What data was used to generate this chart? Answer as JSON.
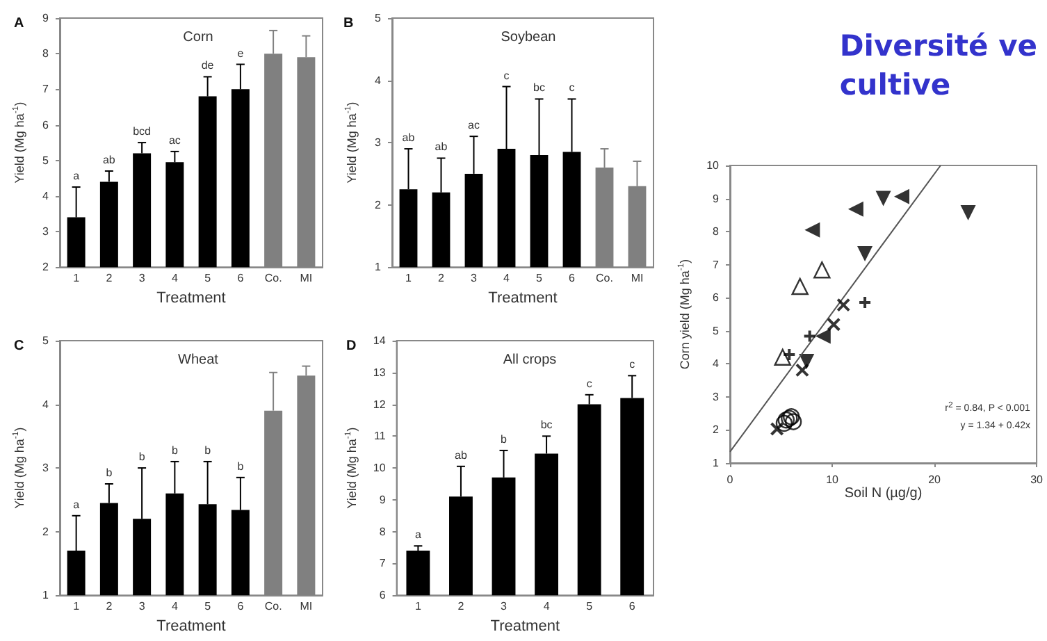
{
  "chart_data": [
    {
      "type": "bar",
      "subtitle": "A",
      "title": "Corn",
      "xlabel": "Treatment",
      "ylabel": "Yield (Mg ha$^{-1}$)",
      "categories": [
        "1",
        "2",
        "3",
        "4",
        "5",
        "6",
        "Co.",
        "MI"
      ],
      "values": [
        3.4,
        4.4,
        5.2,
        4.95,
        6.8,
        7.0,
        8.0,
        7.9
      ],
      "colors": [
        "#000000",
        "#000000",
        "#000000",
        "#000000",
        "#000000",
        "#000000",
        "#808080",
        "#808080"
      ],
      "errors": [
        [
          3.4,
          4.25
        ],
        [
          4.4,
          4.7
        ],
        [
          5.2,
          5.5
        ],
        [
          4.95,
          5.25
        ],
        [
          6.8,
          7.35
        ],
        [
          7.0,
          7.7
        ],
        [
          8.0,
          8.65
        ],
        [
          7.9,
          8.5
        ]
      ],
      "ylim": [
        2,
        9
      ],
      "yticks": [
        2,
        3,
        4,
        5,
        6,
        7,
        8,
        9
      ],
      "annotations": [
        "a",
        "ab",
        "bcd",
        "ac",
        "de",
        "e"
      ]
    },
    {
      "type": "bar",
      "subtitle": "B",
      "title": "Soybean",
      "xlabel": "Treatment",
      "ylabel": "Yield (Mg ha$^{-1}$)",
      "categories": [
        "1",
        "2",
        "3",
        "4",
        "5",
        "6",
        "Co.",
        "MI"
      ],
      "values": [
        2.25,
        2.2,
        2.5,
        2.9,
        2.8,
        2.85,
        2.6,
        2.3
      ],
      "colors": [
        "#000000",
        "#000000",
        "#000000",
        "#000000",
        "#000000",
        "#000000",
        "#808080",
        "#808080"
      ],
      "errors": [
        [
          2.25,
          2.9
        ],
        [
          2.2,
          2.75
        ],
        [
          2.5,
          3.1
        ],
        [
          2.9,
          3.9
        ],
        [
          2.8,
          3.7
        ],
        [
          2.85,
          3.7
        ],
        [
          2.6,
          2.9
        ],
        [
          2.3,
          2.7
        ]
      ],
      "ylim": [
        1,
        5
      ],
      "yticks": [
        1,
        2,
        3,
        4,
        5
      ],
      "annotations": [
        "ab",
        "ab",
        "ac",
        "c",
        "bc",
        "c"
      ]
    },
    {
      "type": "bar",
      "subtitle": "C",
      "title": "Wheat",
      "xlabel": "Treatment",
      "ylabel": "Yield (Mg ha$^{-1}$)",
      "categories": [
        "1",
        "2",
        "3",
        "4",
        "5",
        "6",
        "Co.",
        "MI"
      ],
      "values": [
        1.7,
        2.45,
        2.2,
        2.6,
        2.43,
        2.34,
        3.9,
        4.45
      ],
      "colors": [
        "#000000",
        "#000000",
        "#000000",
        "#000000",
        "#000000",
        "#000000",
        "#808080",
        "#808080"
      ],
      "errors": [
        [
          1.7,
          2.25
        ],
        [
          2.45,
          2.75
        ],
        [
          2.2,
          3.0
        ],
        [
          2.6,
          3.1
        ],
        [
          2.43,
          3.1
        ],
        [
          2.34,
          2.85
        ],
        [
          3.9,
          4.5
        ],
        [
          4.45,
          4.6
        ]
      ],
      "ylim": [
        1,
        5
      ],
      "yticks": [
        1,
        2,
        3,
        4,
        5
      ],
      "annotations": [
        "a",
        "b",
        "b",
        "b",
        "b",
        "b"
      ]
    },
    {
      "type": "bar",
      "subtitle": "D",
      "title": "All crops",
      "xlabel": "Treatment",
      "ylabel": "Yield (Mg ha$^{-1}$)",
      "categories": [
        "1",
        "2",
        "3",
        "4",
        "5",
        "6"
      ],
      "values": [
        7.4,
        9.1,
        9.7,
        10.45,
        12.0,
        12.2
      ],
      "colors": [
        "#000000",
        "#000000",
        "#000000",
        "#000000",
        "#000000",
        "#000000"
      ],
      "errors": [
        [
          7.4,
          7.55
        ],
        [
          9.1,
          10.05
        ],
        [
          9.7,
          10.55
        ],
        [
          10.45,
          11.0
        ],
        [
          12.0,
          12.3
        ],
        [
          12.2,
          12.9
        ]
      ],
      "ylim": [
        6,
        14
      ],
      "yticks": [
        6,
        7,
        8,
        9,
        10,
        11,
        12,
        13,
        14
      ],
      "annotations": [
        "a",
        "ab",
        "b",
        "bc",
        "c",
        "c"
      ]
    },
    {
      "type": "scatter",
      "title": "Diversité ve\ncultive",
      "xlabel": "Soil N (µg/g)",
      "ylabel": "Corn yield (Mg ha$^{-1}$)",
      "xlim": [
        0,
        30
      ],
      "xticks": [
        0,
        10,
        20,
        30
      ],
      "ylim": [
        1,
        10
      ],
      "yticks": [
        1,
        2,
        3,
        4,
        5,
        6,
        7,
        8,
        9,
        10
      ],
      "series": [
        {
          "marker": "triangle-left",
          "color": "#000000",
          "x": [
            8.05,
            12.3,
            16.8,
            9.1
          ],
          "values": [
            8.05,
            8.68,
            9.06,
            4.84
          ]
        },
        {
          "marker": "triangle-down",
          "color": "#000000",
          "x": [
            15.0,
            23.3,
            13.2,
            7.5
          ],
          "values": [
            9.0,
            8.57,
            7.33,
            4.07
          ]
        },
        {
          "marker": "triangle-open",
          "color": "#000000",
          "x": [
            6.85,
            9.0,
            5.15
          ],
          "values": [
            6.34,
            6.84,
            4.2
          ]
        },
        {
          "marker": "cross",
          "color": "#000000",
          "x": [
            11.1,
            10.15,
            7.07,
            4.6
          ],
          "values": [
            5.78,
            5.19,
            3.81,
            2.03
          ]
        },
        {
          "marker": "plus",
          "color": "#000000",
          "x": [
            13.2,
            7.8,
            5.8
          ],
          "values": [
            5.86,
            4.84,
            4.28
          ]
        },
        {
          "marker": "circle-open",
          "color": "#000000",
          "x": [
            5.3,
            5.5,
            5.8,
            6.0,
            6.2
          ],
          "values": [
            2.2,
            2.3,
            2.35,
            2.4,
            2.25
          ]
        },
        {
          "type": "line",
          "color": "#555555",
          "x": [
            0,
            20.6
          ],
          "values": [
            1.34,
            10
          ]
        }
      ],
      "annotations": [
        "r$^{2}$ = 0.84, P < 0.001",
        "y = 1.34 + 0.42x"
      ]
    }
  ]
}
